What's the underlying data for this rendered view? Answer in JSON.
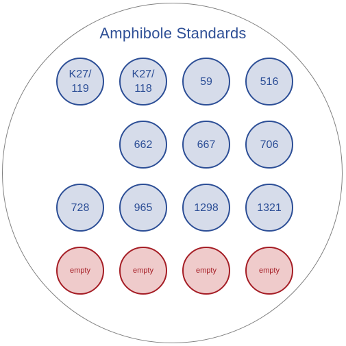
{
  "title": "Amphibole Standards",
  "colors": {
    "title": "#2e4f96",
    "sample_border": "#2c4e96",
    "sample_fill": "#d6dcea",
    "empty_border": "#a51d25",
    "empty_fill": "#efcbcb",
    "outer_border": "#808080"
  },
  "rows": [
    {
      "wells": [
        "K27/\n119",
        "K27/\n118",
        "59",
        "516"
      ]
    },
    {
      "wells": [
        "662",
        "667",
        "706"
      ]
    },
    {
      "wells": [
        "728",
        "965",
        "1298",
        "1321"
      ]
    },
    {
      "wells": [
        "empty",
        "empty",
        "empty",
        "empty"
      ]
    }
  ]
}
